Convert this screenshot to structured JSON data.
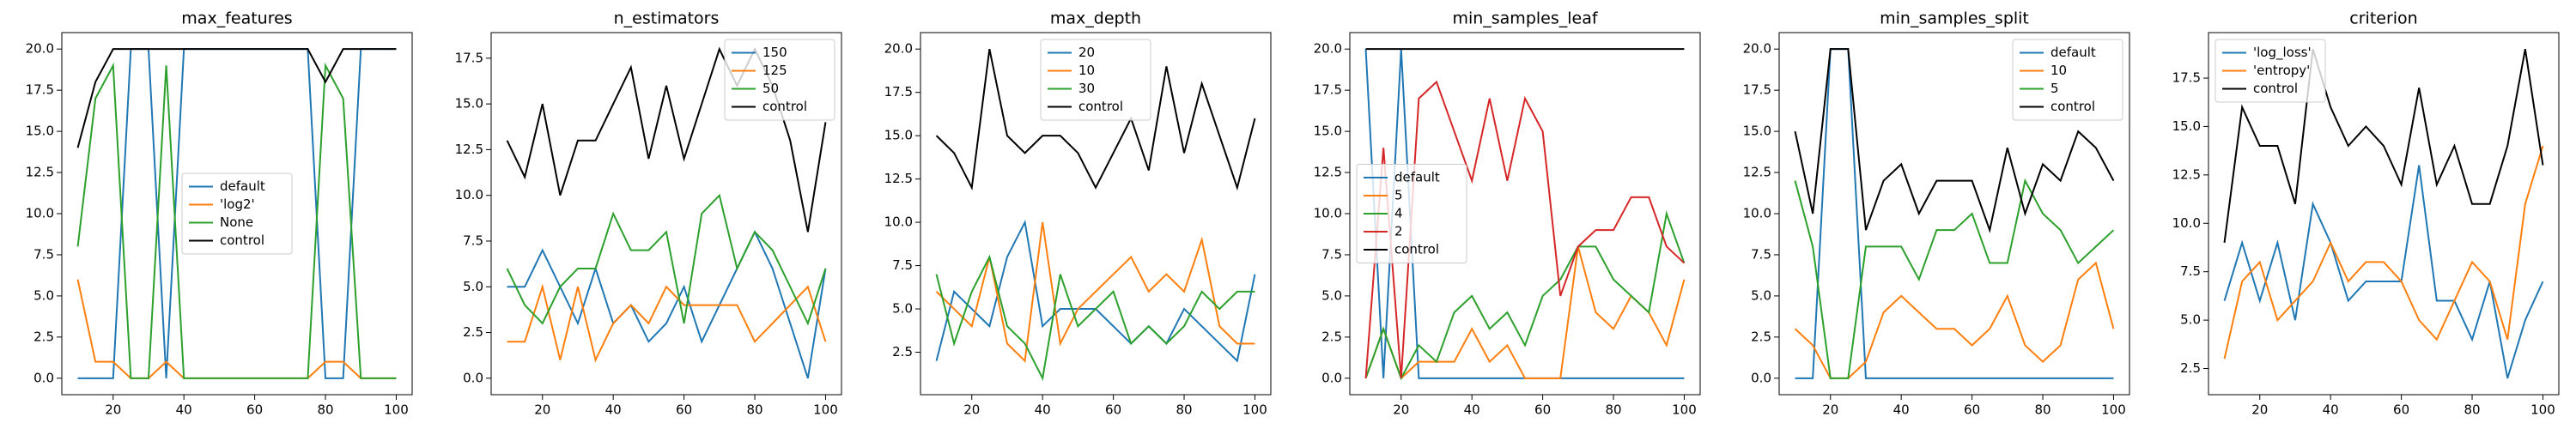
{
  "chart_data": [
    {
      "type": "line",
      "title": "max_features",
      "x": [
        10,
        15,
        20,
        25,
        30,
        35,
        40,
        45,
        50,
        55,
        60,
        65,
        70,
        75,
        80,
        85,
        90,
        95,
        100
      ],
      "series": [
        {
          "name": "default",
          "color": "#1f77b4",
          "values": [
            0,
            0,
            0,
            20,
            20,
            0,
            20,
            20,
            20,
            20,
            20,
            20,
            20,
            20,
            0,
            0,
            20,
            20,
            20
          ]
        },
        {
          "name": "'log2'",
          "color": "#ff7f0e",
          "values": [
            6,
            1,
            1,
            0,
            0,
            1,
            0,
            0,
            0,
            0,
            0,
            0,
            0,
            0,
            1,
            1,
            0,
            0,
            0
          ]
        },
        {
          "name": "None",
          "color": "#2ca02c",
          "values": [
            8,
            17,
            19,
            0,
            0,
            19,
            0,
            0,
            0,
            0,
            0,
            0,
            0,
            0,
            19,
            17,
            0,
            0,
            0
          ]
        },
        {
          "name": "control",
          "color": "#000000",
          "values": [
            14,
            18,
            20,
            20,
            20,
            20,
            20,
            20,
            20,
            20,
            20,
            20,
            20,
            20,
            18,
            20,
            20,
            20,
            20
          ]
        }
      ],
      "xlim": [
        5.5,
        104.5
      ],
      "ylim": [
        -1,
        21
      ],
      "xticks": [
        20,
        40,
        60,
        80,
        100
      ],
      "yticks": [
        {
          "value": 0,
          "label": "0.0"
        },
        2.5,
        {
          "value": 5,
          "label": "5.0"
        },
        7.5,
        {
          "value": 10,
          "label": "10.0"
        },
        12.5,
        {
          "value": 15,
          "label": "15.0"
        },
        17.5,
        {
          "value": 20,
          "label": "20.0"
        }
      ],
      "legend": "center"
    },
    {
      "type": "line",
      "title": "n_estimators",
      "x": [
        10,
        15,
        20,
        25,
        30,
        35,
        40,
        45,
        50,
        55,
        60,
        65,
        70,
        75,
        80,
        85,
        90,
        95,
        100
      ],
      "series": [
        {
          "name": "150",
          "color": "#1f77b4",
          "values": [
            5,
            5,
            7,
            5,
            3,
            6,
            3,
            4,
            2,
            3,
            5,
            2,
            4,
            6,
            8,
            6,
            3,
            0,
            6
          ]
        },
        {
          "name": "125",
          "color": "#ff7f0e",
          "values": [
            2,
            2,
            5,
            1,
            5,
            1,
            3,
            4,
            3,
            5,
            4,
            4,
            4,
            4,
            2,
            3,
            4,
            5,
            2
          ]
        },
        {
          "name": "50",
          "color": "#2ca02c",
          "values": [
            6,
            4,
            3,
            5,
            6,
            6,
            9,
            7,
            7,
            8,
            3,
            9,
            10,
            6,
            8,
            7,
            5,
            3,
            6
          ]
        },
        {
          "name": "control",
          "color": "#000000",
          "values": [
            13,
            11,
            15,
            10,
            13,
            13,
            15,
            17,
            12,
            16,
            12,
            15,
            18,
            16,
            18,
            16,
            13,
            8,
            14
          ]
        }
      ],
      "xlim": [
        5.5,
        104.5
      ],
      "ylim": [
        -0.9,
        18.9
      ],
      "xticks": [
        20,
        40,
        60,
        80,
        100
      ],
      "yticks": [
        {
          "value": 0,
          "label": "0.0"
        },
        2.5,
        {
          "value": 5,
          "label": "5.0"
        },
        7.5,
        {
          "value": 10,
          "label": "10.0"
        },
        12.5,
        {
          "value": 15,
          "label": "15.0"
        },
        17.5
      ],
      "legend": "upper right"
    },
    {
      "type": "line",
      "title": "max_depth",
      "x": [
        10,
        15,
        20,
        25,
        30,
        35,
        40,
        45,
        50,
        55,
        60,
        65,
        70,
        75,
        80,
        85,
        90,
        95,
        100
      ],
      "series": [
        {
          "name": "20",
          "color": "#1f77b4",
          "values": [
            2,
            6,
            5,
            4,
            8,
            10,
            4,
            5,
            5,
            5,
            4,
            3,
            4,
            3,
            5,
            4,
            3,
            2,
            7
          ]
        },
        {
          "name": "10",
          "color": "#ff7f0e",
          "values": [
            6,
            5,
            4,
            8,
            3,
            2,
            10,
            3,
            5,
            6,
            7,
            8,
            6,
            7,
            6,
            9,
            4,
            3,
            3
          ]
        },
        {
          "name": "30",
          "color": "#2ca02c",
          "values": [
            7,
            3,
            6,
            8,
            4,
            3,
            1,
            7,
            4,
            5,
            6,
            3,
            4,
            3,
            4,
            6,
            5,
            6,
            6
          ]
        },
        {
          "name": "control",
          "color": "#000000",
          "values": [
            15,
            14,
            12,
            20,
            15,
            14,
            15,
            15,
            14,
            12,
            14,
            16,
            13,
            19,
            14,
            18,
            15,
            12,
            16
          ]
        }
      ],
      "xlim": [
        5.5,
        104.5
      ],
      "ylim": [
        0.05,
        20.95
      ],
      "xticks": [
        20,
        40,
        60,
        80,
        100
      ],
      "yticks": [
        2.5,
        {
          "value": 5,
          "label": "5.0"
        },
        7.5,
        {
          "value": 10,
          "label": "10.0"
        },
        12.5,
        {
          "value": 15,
          "label": "15.0"
        },
        17.5,
        {
          "value": 20,
          "label": "20.0"
        }
      ],
      "legend": "upper center"
    },
    {
      "type": "line",
      "title": "min_samples_leaf",
      "x": [
        10,
        15,
        20,
        25,
        30,
        35,
        40,
        45,
        50,
        55,
        60,
        65,
        70,
        75,
        80,
        85,
        90,
        95,
        100
      ],
      "series": [
        {
          "name": "default",
          "color": "#1f77b4",
          "values": [
            20,
            0,
            20,
            0,
            0,
            0,
            0,
            0,
            0,
            0,
            0,
            0,
            0,
            0,
            0,
            0,
            0,
            0,
            0
          ]
        },
        {
          "name": "5",
          "color": "#ff7f0e",
          "values": [
            0,
            3,
            0,
            1,
            1,
            1,
            3,
            1,
            2,
            0,
            0,
            0,
            8,
            4,
            3,
            5,
            4,
            2,
            6
          ]
        },
        {
          "name": "4",
          "color": "#2ca02c",
          "values": [
            0,
            3,
            0,
            2,
            1,
            4,
            5,
            3,
            4,
            2,
            5,
            6,
            8,
            8,
            6,
            5,
            4,
            10,
            7
          ]
        },
        {
          "name": "2",
          "color": "#d62728",
          "values": [
            0,
            14,
            0,
            17,
            18,
            15,
            12,
            17,
            12,
            17,
            15,
            5,
            8,
            9,
            9,
            11,
            11,
            8,
            7
          ]
        },
        {
          "name": "control",
          "color": "#000000",
          "values": [
            20,
            20,
            20,
            20,
            20,
            20,
            20,
            20,
            20,
            20,
            20,
            20,
            20,
            20,
            20,
            20,
            20,
            20,
            20
          ]
        }
      ],
      "xlim": [
        5.5,
        104.5
      ],
      "ylim": [
        -1,
        21
      ],
      "xticks": [
        20,
        40,
        60,
        80,
        100
      ],
      "yticks": [
        {
          "value": 0,
          "label": "0.0"
        },
        2.5,
        {
          "value": 5,
          "label": "5.0"
        },
        7.5,
        {
          "value": 10,
          "label": "10.0"
        },
        12.5,
        {
          "value": 15,
          "label": "15.0"
        },
        17.5,
        {
          "value": 20,
          "label": "20.0"
        }
      ],
      "legend": "center left"
    },
    {
      "type": "line",
      "title": "min_samples_split",
      "x": [
        10,
        15,
        20,
        25,
        30,
        35,
        40,
        45,
        50,
        55,
        60,
        65,
        70,
        75,
        80,
        85,
        90,
        95,
        100
      ],
      "series": [
        {
          "name": "default",
          "color": "#1f77b4",
          "values": [
            0,
            0,
            20,
            20,
            0,
            0,
            0,
            0,
            0,
            0,
            0,
            0,
            0,
            0,
            0,
            0,
            0,
            0,
            0
          ]
        },
        {
          "name": "10",
          "color": "#ff7f0e",
          "values": [
            3,
            2,
            0,
            0,
            1,
            4,
            5,
            4,
            3,
            3,
            2,
            3,
            5,
            2,
            1,
            2,
            6,
            7,
            3
          ]
        },
        {
          "name": "5",
          "color": "#2ca02c",
          "values": [
            12,
            8,
            0,
            0,
            8,
            8,
            8,
            6,
            9,
            9,
            10,
            7,
            7,
            12,
            10,
            9,
            7,
            8,
            9
          ]
        },
        {
          "name": "control",
          "color": "#000000",
          "values": [
            15,
            10,
            20,
            20,
            9,
            12,
            13,
            10,
            12,
            12,
            12,
            9,
            14,
            10,
            13,
            12,
            15,
            14,
            12
          ]
        }
      ],
      "xlim": [
        5.5,
        104.5
      ],
      "ylim": [
        -1,
        21
      ],
      "xticks": [
        20,
        40,
        60,
        80,
        100
      ],
      "yticks": [
        {
          "value": 0,
          "label": "0.0"
        },
        2.5,
        {
          "value": 5,
          "label": "5.0"
        },
        7.5,
        {
          "value": 10,
          "label": "10.0"
        },
        12.5,
        {
          "value": 15,
          "label": "15.0"
        },
        17.5,
        {
          "value": 20,
          "label": "20.0"
        }
      ],
      "legend": "upper right"
    },
    {
      "type": "line",
      "title": "criterion",
      "x": [
        10,
        15,
        20,
        25,
        30,
        35,
        40,
        45,
        50,
        55,
        60,
        65,
        70,
        75,
        80,
        85,
        90,
        95,
        100
      ],
      "series": [
        {
          "name": "'log_loss'",
          "color": "#1f77b4",
          "values": [
            6,
            9,
            6,
            9,
            5,
            11,
            9,
            6,
            7,
            7,
            7,
            13,
            6,
            6,
            4,
            7,
            2,
            5,
            7
          ]
        },
        {
          "name": "'entropy'",
          "color": "#ff7f0e",
          "values": [
            3,
            7,
            8,
            5,
            6,
            7,
            9,
            7,
            8,
            8,
            7,
            5,
            4,
            6,
            8,
            7,
            4,
            11,
            14
          ]
        },
        {
          "name": "control",
          "color": "#000000",
          "values": [
            9,
            16,
            14,
            14,
            11,
            19,
            16,
            14,
            15,
            14,
            12,
            17,
            12,
            14,
            11,
            11,
            14,
            19,
            13
          ]
        }
      ],
      "xlim": [
        5.5,
        104.5
      ],
      "ylim": [
        1.15,
        19.85
      ],
      "xticks": [
        20,
        40,
        60,
        80,
        100
      ],
      "yticks": [
        2.5,
        {
          "value": 5,
          "label": "5.0"
        },
        7.5,
        {
          "value": 10,
          "label": "10.0"
        },
        12.5,
        {
          "value": 15,
          "label": "15.0"
        },
        17.5
      ],
      "legend": "upper left"
    }
  ]
}
